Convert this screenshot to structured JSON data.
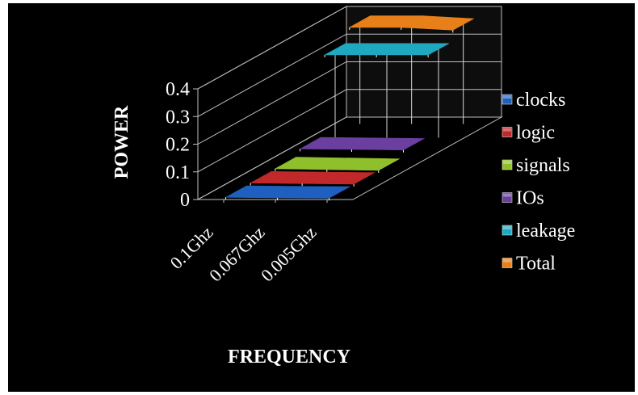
{
  "chart_data": {
    "type": "line",
    "variant": "3d",
    "title": "",
    "xlabel": "FREQUENCY",
    "ylabel": "POWER",
    "categories": [
      "0.1Ghz",
      "0.067Ghz",
      "0.005Ghz"
    ],
    "ylim": [
      0,
      0.4
    ],
    "yticks": [
      "0",
      "0.1",
      "0.2",
      "0.3",
      "0.4"
    ],
    "grid": true,
    "legend_position": "right",
    "series": [
      {
        "name": "clocks",
        "values": [
          0.004,
          0.002,
          0.001
        ],
        "color": "#1f5fbf"
      },
      {
        "name": "logic",
        "values": [
          0.006,
          0.004,
          0.002
        ],
        "color": "#c0282a"
      },
      {
        "name": "signals",
        "values": [
          0.008,
          0.005,
          0.002
        ],
        "color": "#8fbf2a"
      },
      {
        "name": "IOs",
        "values": [
          0.03,
          0.028,
          0.026
        ],
        "color": "#6a3fa0"
      },
      {
        "name": "leakage",
        "values": [
          0.32,
          0.32,
          0.32
        ],
        "color": "#1fa9c0"
      },
      {
        "name": "Total",
        "values": [
          0.37,
          0.37,
          0.36
        ],
        "color": "#e8801a"
      }
    ]
  }
}
